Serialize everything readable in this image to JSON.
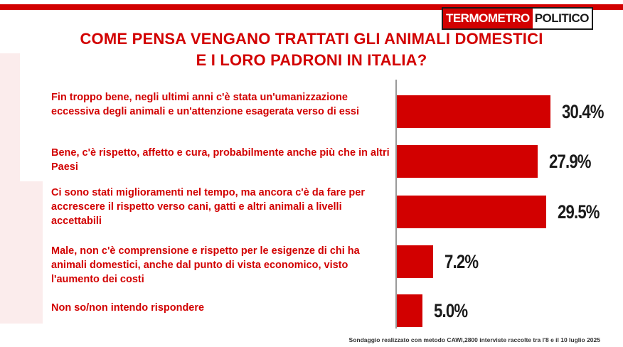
{
  "logo": {
    "part1": "TERMOMETRO",
    "part2": "POLITICO"
  },
  "title": {
    "line1": "COME PENSA VENGANO TRATTATI GLI ANIMALI DOMESTICI",
    "line2": "E I LORO PADRONI IN ITALIA?"
  },
  "source": "Sondaggio realizzato con metodo CAWI,2800 interviste raccolte tra l'8 e il 10 luglio 2025",
  "colors": {
    "accent": "#d20000",
    "value_text": "#1a1a1a",
    "axis": "#9a9a9a"
  },
  "chart_data": {
    "type": "bar",
    "orientation": "horizontal",
    "categories": [
      "Fin troppo bene, negli ultimi anni c'è stata un'umanizzazione eccessiva degli animali e un'attenzione esagerata verso di essi",
      "Bene, c'è rispetto, affetto e cura, probabilmente anche più che in altri Paesi",
      "Ci sono stati miglioramenti nel tempo, ma ancora c'è da fare per accrescere il rispetto verso cani, gatti e altri animali a livelli accettabili",
      "Male, non c'è comprensione e rispetto per le esigenze di chi ha animali domestici, anche dal punto di vista economico, visto l'aumento dei costi",
      "Non so/non intendo rispondere"
    ],
    "values": [
      30.4,
      27.9,
      29.5,
      7.2,
      5.0
    ],
    "value_labels": [
      "30.4%",
      "27.9%",
      "29.5%",
      "7.2%",
      "5.0%"
    ],
    "title": "COME PENSA VENGANO TRATTATI GLI ANIMALI DOMESTICI E I LORO PADRONI IN ITALIA?",
    "xlabel": "",
    "ylabel": "",
    "xlim": [
      0,
      30.4
    ],
    "grid": false,
    "legend": "none"
  }
}
